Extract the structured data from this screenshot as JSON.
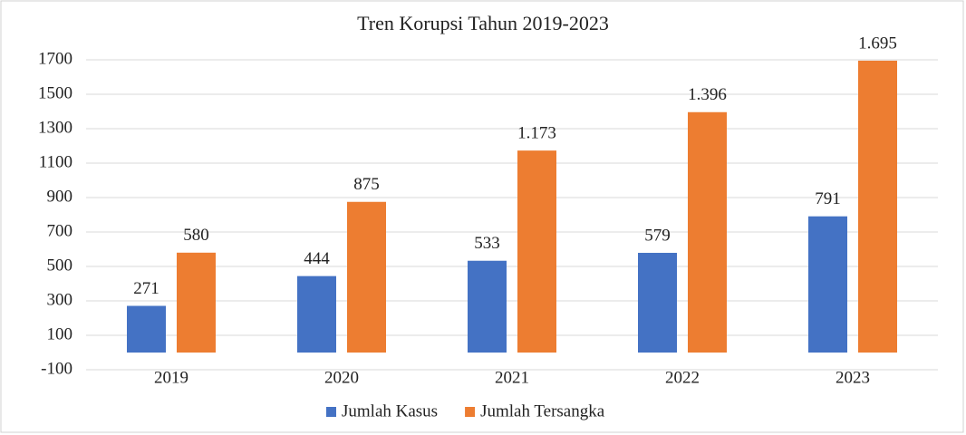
{
  "chart_data": {
    "type": "bar",
    "title": "Tren Korupsi Tahun 2019-2023",
    "categories": [
      "2019",
      "2020",
      "2021",
      "2022",
      "2023"
    ],
    "series": [
      {
        "name": "Jumlah Kasus",
        "color": "#4472c4",
        "values": [
          271,
          444,
          533,
          579,
          791
        ]
      },
      {
        "name": "Jumlah Tersangka",
        "color": "#ed7d31",
        "values": [
          580,
          875,
          1173,
          1396,
          1695
        ],
        "value_labels": [
          "580",
          "875",
          "1.173",
          "1.396",
          "1.695"
        ]
      }
    ],
    "ylim": [
      -100,
      1700
    ],
    "yticks": [
      -100,
      100,
      300,
      500,
      700,
      900,
      1100,
      1300,
      1500,
      1700
    ],
    "grid": true,
    "legend": "bottom"
  }
}
